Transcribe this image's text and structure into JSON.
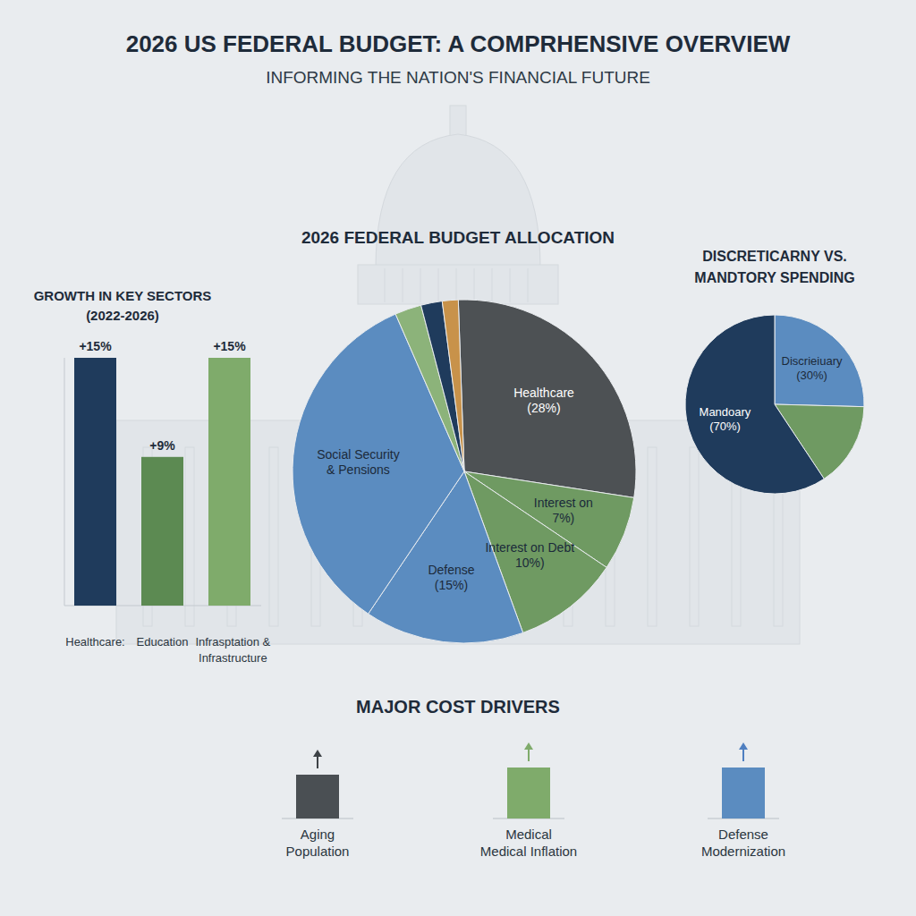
{
  "header": {
    "title": "2026 US FEDERAL BUDGET: A COMPRHENSIVE OVERVIEW",
    "subtitle": "INFORMING THE NATION'S FINANCIAL FUTURE"
  },
  "chart_data": [
    {
      "type": "bar",
      "title": "GROWTH IN KEY SECTORS (2022-2026)",
      "categories": [
        "Healthcare:",
        "Education",
        "Infrasptation & Infrastructure"
      ],
      "values": [
        15,
        9,
        15
      ],
      "value_labels": [
        "+15%",
        "+9%",
        "+15%"
      ],
      "colors": [
        "#1f3b5c",
        "#5c8a52",
        "#7fab6b"
      ],
      "ylim": [
        0,
        15
      ],
      "data_labels": true,
      "tick_labels": "x"
    },
    {
      "type": "pie",
      "title": "2026 FEDERAL BUDGET ALLOCATION",
      "categories": [
        "Healthcare",
        "Interest on",
        "Interest on Debt",
        "Defense",
        "Social Security & Pensions",
        null,
        null,
        null
      ],
      "values": [
        28,
        7,
        10,
        15,
        34,
        2.5,
        2,
        1.5
      ],
      "value_labels": [
        "(28%)",
        "7%)",
        "10%)",
        "(15%)",
        null,
        null,
        null,
        null
      ],
      "colors": [
        "#4d5154",
        "#6f9a62",
        "#6f9a62",
        "#5b8cc0",
        "#5b8cc0",
        "#8cb37a",
        "#1f3b5c",
        "#c8924a"
      ],
      "data_labels": true
    },
    {
      "type": "pie",
      "title": "DISCRETICARNY VS. MANDTORY SPENDING",
      "categories": [
        "Discrieiuary",
        null,
        "Mandoary"
      ],
      "values": [
        30,
        18,
        70
      ],
      "value_labels": [
        "(30%)",
        null,
        "(70%)"
      ],
      "colors": [
        "#5b8cc0",
        "#6f9a62",
        "#1f3b5c"
      ],
      "data_labels": true
    }
  ],
  "cost_drivers": {
    "title": "MAJOR COST DRIVERS",
    "items": [
      "Aging Population",
      "Medical Medical Inflation",
      "Defense Modernization"
    ]
  }
}
